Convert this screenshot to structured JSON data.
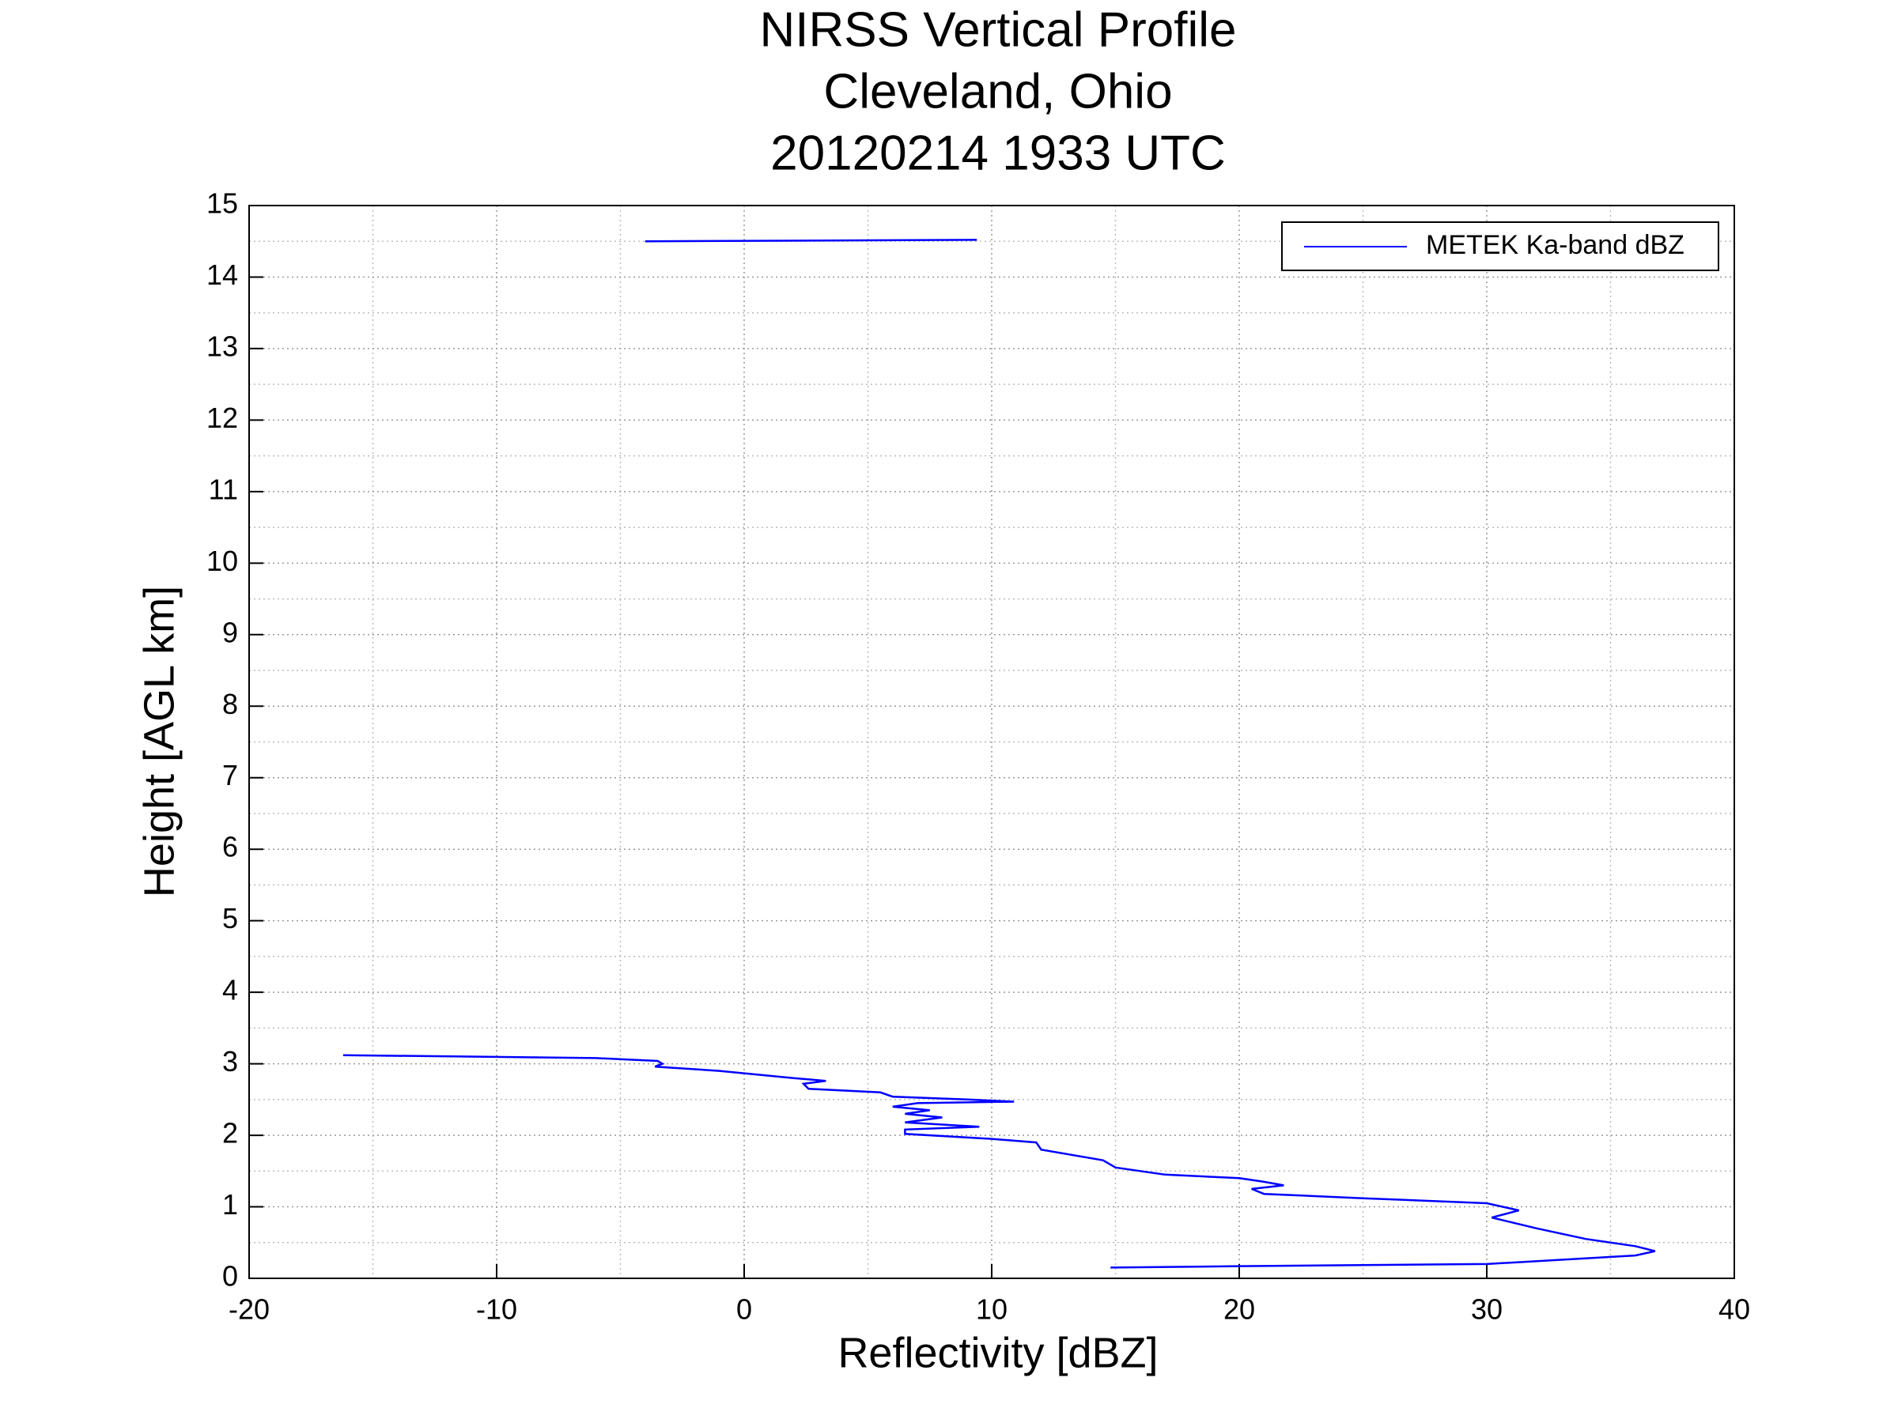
{
  "chart_data": {
    "type": "line",
    "title": [
      "NIRSS Vertical Profile",
      "Cleveland, Ohio",
      "20120214 1933 UTC"
    ],
    "x_label": "Reflectivity [dBZ]",
    "y_label": "Height [AGL km]",
    "xlim": [
      -20,
      40
    ],
    "xticks": [
      -20,
      -10,
      0,
      10,
      20,
      30,
      40
    ],
    "ylim": [
      0,
      15
    ],
    "yticks": [
      0,
      1,
      2,
      3,
      4,
      5,
      6,
      7,
      8,
      9,
      10,
      11,
      12,
      13,
      14,
      15
    ],
    "grid": true,
    "legend": "upper right",
    "series": [
      {
        "name": "METEK Ka-band dBZ",
        "color": "#0000ff",
        "x": [
          -4,
          9.4,
          null,
          -16.2,
          -6,
          -3.5,
          -3.3,
          -3.6,
          -1,
          2,
          3.3,
          2.4,
          2.6,
          5.5,
          6,
          9,
          10.9,
          7,
          6,
          7.5,
          6.5,
          8,
          6.5,
          9.5,
          6.5,
          6.5,
          10,
          11.8,
          12,
          14.5,
          15,
          17,
          20,
          21,
          21.8,
          20.5,
          21,
          25,
          30,
          31.3,
          30.2,
          32,
          34,
          36,
          36.8,
          36,
          30,
          20,
          14.8
        ],
        "values": [
          14.5,
          14.52,
          null,
          3.12,
          3.08,
          3.04,
          3.0,
          2.96,
          2.9,
          2.8,
          2.76,
          2.72,
          2.65,
          2.6,
          2.54,
          2.5,
          2.47,
          2.45,
          2.4,
          2.35,
          2.3,
          2.25,
          2.18,
          2.12,
          2.08,
          2.02,
          1.95,
          1.9,
          1.8,
          1.65,
          1.55,
          1.45,
          1.4,
          1.35,
          1.3,
          1.25,
          1.18,
          1.12,
          1.05,
          0.95,
          0.85,
          0.7,
          0.55,
          0.45,
          0.38,
          0.32,
          0.2,
          0.17,
          0.15
        ]
      }
    ]
  }
}
